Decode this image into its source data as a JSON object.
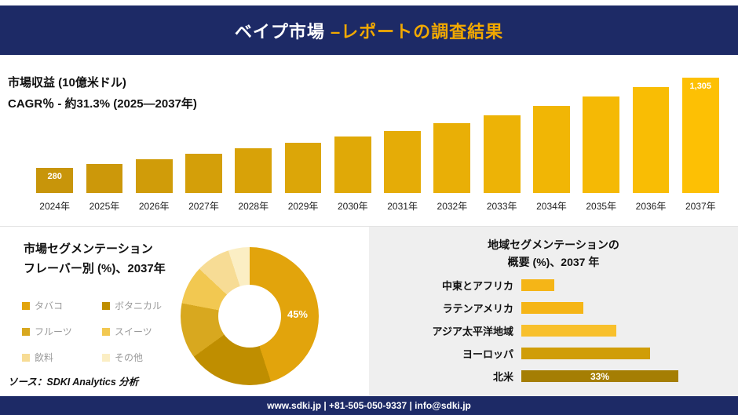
{
  "header": {
    "title_main": "ベイプ市場 ",
    "title_accent": "–レポートの調査結果"
  },
  "revenue": {
    "label1": "市場収益 (10億米ドル)",
    "label2": "CAGR％ - 約31.3% (2025―2037年)"
  },
  "flavor": {
    "title1": "市場セグメンテーション",
    "title2": "フレーバー別 (%)、2037年",
    "source": "ソース：SDKI Analytics 分析"
  },
  "region": {
    "title1": "地域セグメンテーションの",
    "title2": "概要 (%)、2037 年"
  },
  "footer": {
    "contact": "www.sdki.jp | +81-505-050-9337 | info@sdki.jp"
  },
  "colors": {
    "navy": "#1d2a66",
    "accent": "#f2a900",
    "bar_start": "#c8950a",
    "bar_end": "#fdc004",
    "panel_gray": "#efefef"
  },
  "chart_data": [
    {
      "type": "bar",
      "title": "市場収益 (10億米ドル)",
      "categories": [
        "2024年",
        "2025年",
        "2026年",
        "2027年",
        "2028年",
        "2029年",
        "2030年",
        "2031年",
        "2032年",
        "2033年",
        "2034年",
        "2035年",
        "2036年",
        "2037年"
      ],
      "values": [
        280,
        330,
        385,
        445,
        505,
        565,
        635,
        705,
        790,
        880,
        985,
        1095,
        1195,
        1305
      ],
      "value_labels": {
        "0": "280",
        "13": "1,305"
      },
      "ylim": [
        0,
        1400
      ],
      "legend_position": "none",
      "grid": false
    },
    {
      "type": "pie",
      "donut": true,
      "title": "市場セグメンテーション フレーバー別 (%)、2037年",
      "labels": [
        "タバコ",
        "ボタニカル",
        "フルーツ",
        "スイーツ",
        "飲料",
        "その他"
      ],
      "values": [
        45,
        20,
        13,
        9,
        8,
        5
      ],
      "colors": [
        "#e2a40c",
        "#bf8e00",
        "#d8a81f",
        "#f2c851",
        "#f7dc95",
        "#fbeec4"
      ],
      "labeled_slice": {
        "index": 0,
        "label": "45%"
      }
    },
    {
      "type": "bar",
      "orientation": "horizontal",
      "title": "地域セグメンテーションの概要 (%)、2037 年",
      "categories": [
        "中東とアフリカ",
        "ラテンアメリカ",
        "アジア太平洋地域",
        "ヨーロッパ",
        "北米"
      ],
      "values": [
        7,
        13,
        20,
        27,
        33
      ],
      "colors": [
        "#f5b517",
        "#f5b517",
        "#f8c02c",
        "#d09d08",
        "#a57e03"
      ],
      "value_labels": {
        "4": "33%"
      },
      "xlim": [
        0,
        33
      ],
      "grid": false
    }
  ]
}
